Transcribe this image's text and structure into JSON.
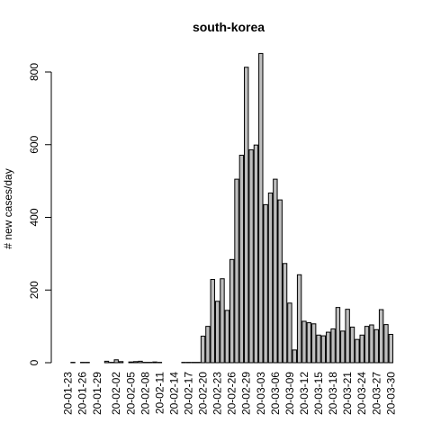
{
  "chart_data": {
    "type": "bar",
    "title": "south-korea",
    "ylabel": "# new cases/day",
    "xlabel": "",
    "ylim": [
      0,
      900
    ],
    "yticks": [
      0,
      200,
      400,
      600,
      800
    ],
    "dates": [
      "20-01-23",
      "20-01-24",
      "20-01-25",
      "20-01-26",
      "20-01-27",
      "20-01-28",
      "20-01-29",
      "20-01-30",
      "20-01-31",
      "20-02-01",
      "20-02-02",
      "20-02-03",
      "20-02-04",
      "20-02-05",
      "20-02-06",
      "20-02-07",
      "20-02-08",
      "20-02-09",
      "20-02-10",
      "20-02-11",
      "20-02-12",
      "20-02-13",
      "20-02-14",
      "20-02-15",
      "20-02-16",
      "20-02-17",
      "20-02-18",
      "20-02-19",
      "20-02-20",
      "20-02-21",
      "20-02-22",
      "20-02-23",
      "20-02-24",
      "20-02-25",
      "20-02-26",
      "20-02-27",
      "20-02-28",
      "20-02-29",
      "20-03-01",
      "20-03-02",
      "20-03-03",
      "20-03-04",
      "20-03-05",
      "20-03-06",
      "20-03-07",
      "20-03-08",
      "20-03-09",
      "20-03-10",
      "20-03-11",
      "20-03-12",
      "20-03-13",
      "20-03-14",
      "20-03-15",
      "20-03-16",
      "20-03-17",
      "20-03-18",
      "20-03-19",
      "20-03-20",
      "20-03-21",
      "20-03-22",
      "20-03-23",
      "20-03-24",
      "20-03-25",
      "20-03-26",
      "20-03-27",
      "20-03-28",
      "20-03-29",
      "20-03-30"
    ],
    "tick_labels": [
      "20-01-23",
      "20-01-26",
      "20-01-29",
      "20-02-02",
      "20-02-05",
      "20-02-08",
      "20-02-11",
      "20-02-14",
      "20-02-17",
      "20-02-20",
      "20-02-23",
      "20-02-26",
      "20-02-29",
      "20-03-03",
      "20-03-06",
      "20-03-09",
      "20-03-12",
      "20-03-15",
      "20-03-18",
      "20-03-21",
      "20-03-24",
      "20-03-27",
      "20-03-30"
    ],
    "values": [
      0,
      1,
      0,
      1,
      1,
      0,
      0,
      0,
      4,
      1,
      8,
      3,
      0,
      2,
      3,
      4,
      1,
      1,
      2,
      1,
      0,
      0,
      0,
      0,
      1,
      1,
      1,
      1,
      73,
      100,
      229,
      169,
      231,
      144,
      284,
      505,
      571,
      813,
      586,
      599,
      851,
      435,
      467,
      505,
      448,
      273,
      164,
      35,
      242,
      114,
      110,
      107,
      76,
      74,
      84,
      93,
      152,
      87,
      147,
      98,
      64,
      76,
      100,
      104,
      91,
      146,
      105,
      78
    ],
    "grid": false,
    "legend": "none",
    "colors": {
      "bar_fill": "#bebebe",
      "bar_stroke": "#000000"
    }
  }
}
